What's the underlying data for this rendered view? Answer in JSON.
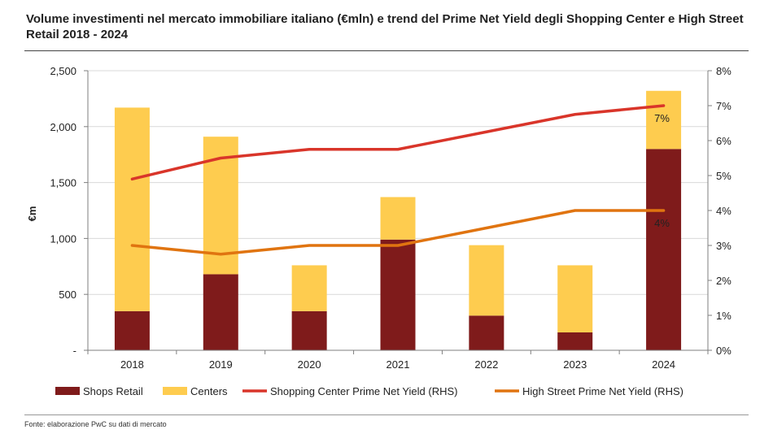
{
  "title": "Volume investimenti nel mercato immobiliare italiano (€mln) e trend del Prime Net Yield degli Shopping Center e High Street Retail 2018 - 2024",
  "source": "Fonte: elaborazione PwC su dati di mercato",
  "colors": {
    "shops": "#7f1b1b",
    "centers": "#fecc4f",
    "sc_yield": "#d9352a",
    "hs_yield": "#e07410",
    "grid": "#d9d9d9",
    "axis": "#7f7f7f"
  },
  "chart_data": {
    "type": "bar",
    "stacked": true,
    "categories": [
      "2018",
      "2019",
      "2020",
      "2021",
      "2022",
      "2023",
      "2024"
    ],
    "ylabel": "€m",
    "ylim": [
      0,
      2500
    ],
    "yticks": [
      0,
      500,
      1000,
      1500,
      2000,
      2500
    ],
    "ytick_labels": [
      "-",
      "500",
      "1,000",
      "1,500",
      "2,000",
      "2,500"
    ],
    "y2lim": [
      0,
      8
    ],
    "y2ticks": [
      0,
      1,
      2,
      3,
      4,
      5,
      6,
      7,
      8
    ],
    "y2tick_labels": [
      "0%",
      "1%",
      "2%",
      "3%",
      "4%",
      "5%",
      "6%",
      "7%",
      "8%"
    ],
    "grid": true,
    "legend_position": "bottom",
    "series": [
      {
        "name": "Shops Retail",
        "type": "bar",
        "values": [
          350,
          680,
          350,
          990,
          310,
          160,
          1800
        ]
      },
      {
        "name": "Centers",
        "type": "bar",
        "values": [
          1820,
          1230,
          410,
          380,
          630,
          600,
          520
        ]
      },
      {
        "name": "Shopping Center Prime Net Yield (RHS)",
        "type": "line",
        "axis": "right",
        "values": [
          4.9,
          5.5,
          5.75,
          5.75,
          6.25,
          6.75,
          7.0
        ]
      },
      {
        "name": "High Street Prime Net Yield (RHS)",
        "type": "line",
        "axis": "right",
        "values": [
          3.0,
          2.75,
          3.0,
          3.0,
          3.5,
          4.0,
          4.0
        ]
      }
    ],
    "annotations": [
      {
        "text": "7%",
        "series": "Shopping Center Prime Net Yield (RHS)",
        "category": "2024"
      },
      {
        "text": "4%",
        "series": "High Street Prime Net Yield (RHS)",
        "category": "2024"
      }
    ]
  }
}
